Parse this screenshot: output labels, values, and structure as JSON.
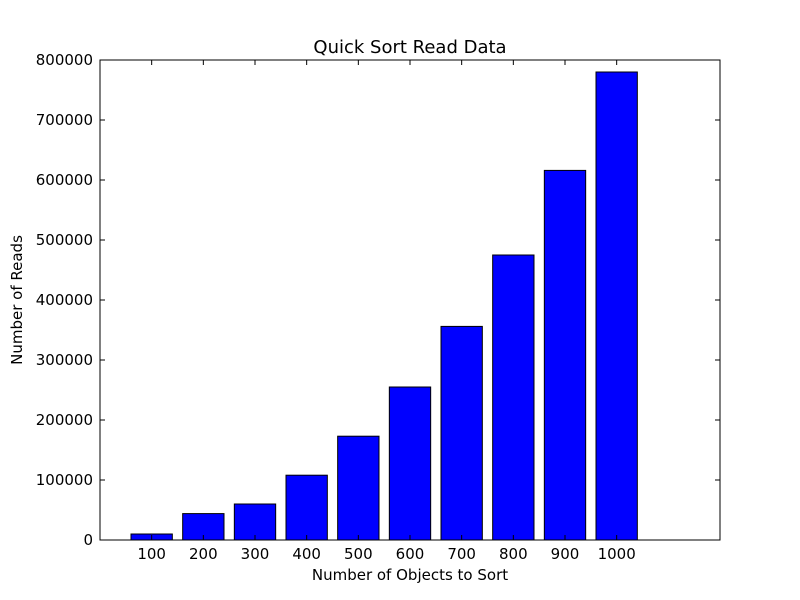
{
  "chart_data": {
    "type": "bar",
    "title": "Quick Sort Read Data",
    "xlabel": "Number of Objects to Sort",
    "ylabel": "Number of Reads",
    "categories": [
      "100",
      "200",
      "300",
      "400",
      "500",
      "600",
      "700",
      "800",
      "900",
      "1000"
    ],
    "values": [
      10000,
      44000,
      60000,
      108000,
      173000,
      255000,
      356000,
      475000,
      616000,
      780000
    ],
    "ylim": [
      0,
      800000
    ],
    "xlim": [
      0,
      1200
    ],
    "yticks": [
      0,
      100000,
      200000,
      300000,
      400000,
      500000,
      600000,
      700000,
      800000
    ],
    "ytick_labels": [
      "0",
      "100000",
      "200000",
      "300000",
      "400000",
      "500000",
      "600000",
      "700000",
      "800000"
    ],
    "bar_color": "#0000ff",
    "edge_color": "#000000",
    "grid": false,
    "legend": "none"
  }
}
